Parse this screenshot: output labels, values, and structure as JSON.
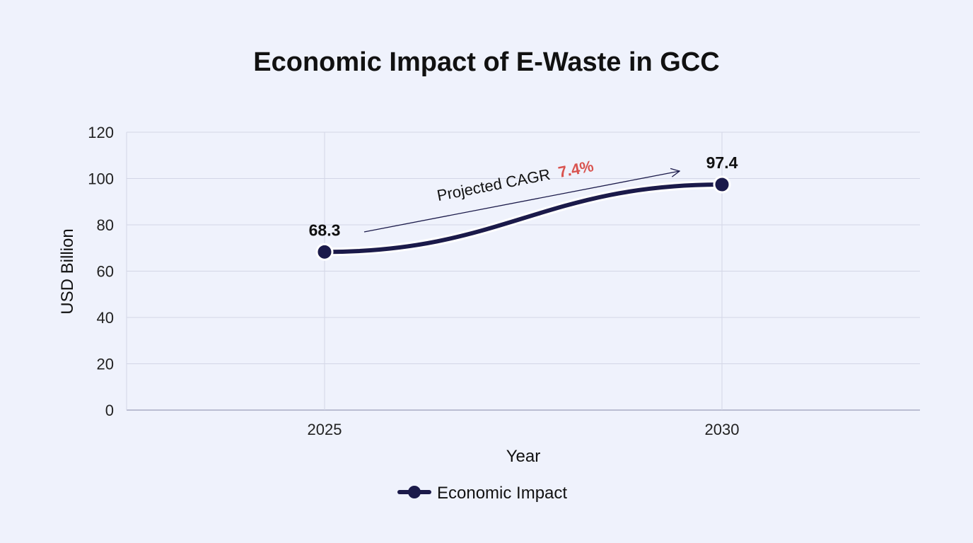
{
  "chart_data": {
    "type": "line",
    "title": "Economic Impact of E-Waste in GCC",
    "xlabel": "Year",
    "ylabel": "USD Billion",
    "categories": [
      "2025",
      "2030"
    ],
    "series": [
      {
        "name": "Economic Impact",
        "values": [
          68.3,
          97.4
        ],
        "value_labels": [
          "68.3",
          "97.4"
        ],
        "color": "#1b1a4a"
      }
    ],
    "ylim": [
      0,
      120
    ],
    "yticks": [
      "0",
      "20",
      "40",
      "60",
      "80",
      "100",
      "120"
    ],
    "grid": true,
    "legend_position": "bottom-center",
    "annotation": {
      "text": "Projected CAGR",
      "value": "7.4%",
      "value_color": "#d9534f"
    }
  }
}
